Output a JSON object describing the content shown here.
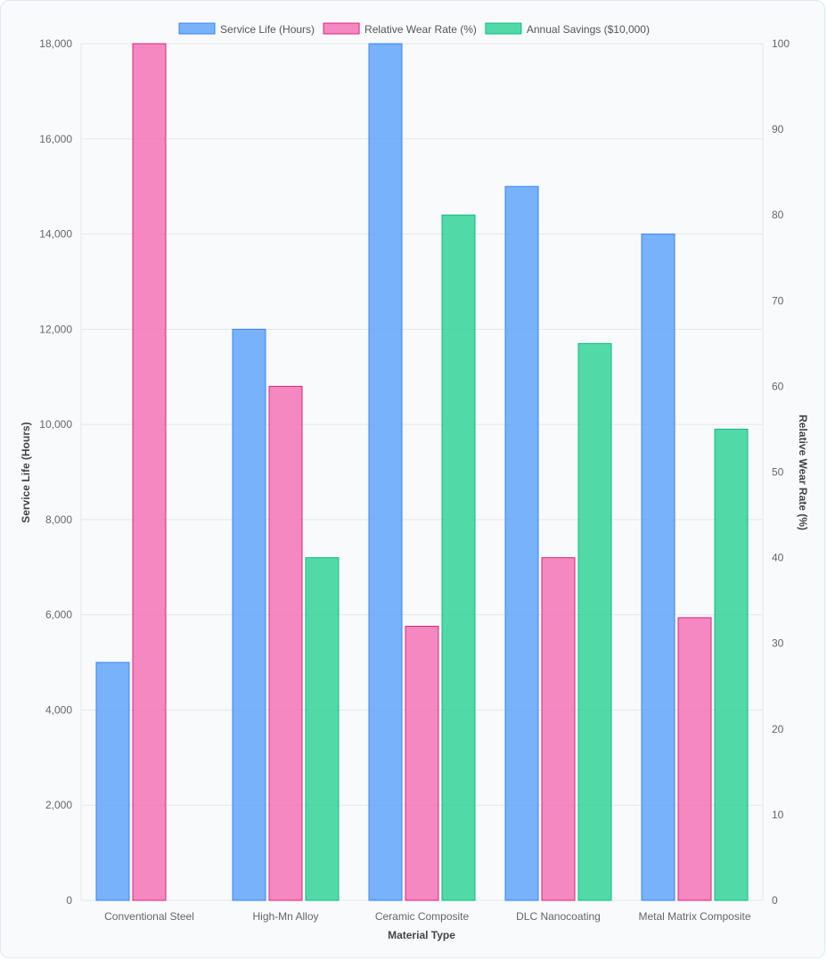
{
  "chart_data": {
    "type": "bar",
    "xlabel": "Material Type",
    "categories": [
      "Conventional Steel",
      "High-Mn Alloy",
      "Ceramic Composite",
      "DLC Nanocoating",
      "Metal Matrix Composite"
    ],
    "series": [
      {
        "name": "Service Life (Hours)",
        "axis": "left",
        "color": "#60a5fa",
        "border": "#3b82f6",
        "values": [
          5000,
          12000,
          18000,
          15000,
          14000
        ]
      },
      {
        "name": "Relative Wear Rate (%)",
        "axis": "right",
        "color": "#f472b6",
        "border": "#db2777",
        "values": [
          100,
          60,
          32,
          40,
          33
        ]
      },
      {
        "name": "Annual Savings ($10,000)",
        "axis": "right",
        "color": "#34d399",
        "border": "#10b981",
        "values": [
          0,
          40,
          80,
          65,
          55
        ]
      }
    ],
    "y_left": {
      "label": "Service Life (Hours)",
      "min": 0,
      "max": 18000,
      "step": 2000,
      "tick_labels": [
        "0",
        "2,000",
        "4,000",
        "6,000",
        "8,000",
        "10,000",
        "12,000",
        "14,000",
        "16,000",
        "18,000"
      ]
    },
    "y_right": {
      "label": "Relative Wear Rate (%)",
      "min": 0,
      "max": 100,
      "step": 10,
      "tick_labels": [
        "0",
        "10",
        "20",
        "30",
        "40",
        "50",
        "60",
        "70",
        "80",
        "90",
        "100"
      ]
    },
    "legend_position": "top",
    "grid": true
  }
}
